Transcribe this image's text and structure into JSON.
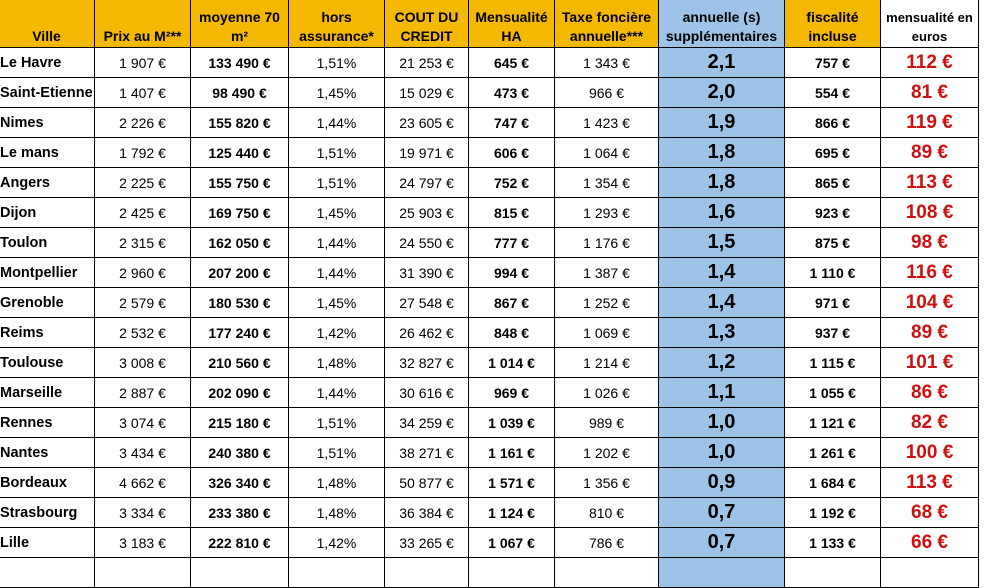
{
  "headers": {
    "ville": "Ville",
    "prix": "Prix au M²**",
    "moyenne_l1": "moyenne 70",
    "moyenne_l2": "m²",
    "hors_l1": "hors",
    "hors_l2": "assurance*",
    "cout_l1": "COUT DU",
    "cout_l2": "CREDIT",
    "mens_ha_l1": "Mensualité",
    "mens_ha_l2": "HA",
    "taxe_l1": "Taxe foncière",
    "taxe_l2": "annuelle***",
    "annuelle_l1": "annuelle (s)",
    "annuelle_l2": "supplémentaires",
    "fisc_l1": "fiscalité",
    "fisc_l2": "incluse",
    "mens_eur_l1": "mensualité en",
    "mens_eur_l2": "euros"
  },
  "rows": [
    {
      "ville": "Le Havre",
      "prix": "1 907 €",
      "moyenne": "133 490 €",
      "taux": "1,51%",
      "cout": "21 253 €",
      "mens_ha": "645 €",
      "taxe": "1 343 €",
      "annuelle": "2,1",
      "fiscalite": "757 €",
      "mensualite": "112 €"
    },
    {
      "ville": "Saint-Etienne",
      "prix": "1 407 €",
      "moyenne": "98 490 €",
      "taux": "1,45%",
      "cout": "15 029 €",
      "mens_ha": "473 €",
      "taxe": "966 €",
      "annuelle": "2,0",
      "fiscalite": "554 €",
      "mensualite": "81 €"
    },
    {
      "ville": "Nimes",
      "prix": "2 226 €",
      "moyenne": "155 820 €",
      "taux": "1,44%",
      "cout": "23 605 €",
      "mens_ha": "747 €",
      "taxe": "1 423 €",
      "annuelle": "1,9",
      "fiscalite": "866 €",
      "mensualite": "119 €"
    },
    {
      "ville": "Le mans",
      "prix": "1 792 €",
      "moyenne": "125 440 €",
      "taux": "1,51%",
      "cout": "19 971 €",
      "mens_ha": "606 €",
      "taxe": "1 064 €",
      "annuelle": "1,8",
      "fiscalite": "695 €",
      "mensualite": "89 €"
    },
    {
      "ville": "Angers",
      "prix": "2 225 €",
      "moyenne": "155 750 €",
      "taux": "1,51%",
      "cout": "24 797 €",
      "mens_ha": "752 €",
      "taxe": "1 354 €",
      "annuelle": "1,8",
      "fiscalite": "865 €",
      "mensualite": "113 €"
    },
    {
      "ville": "Dijon",
      "prix": "2 425 €",
      "moyenne": "169 750 €",
      "taux": "1,45%",
      "cout": "25 903 €",
      "mens_ha": "815 €",
      "taxe": "1 293 €",
      "annuelle": "1,6",
      "fiscalite": "923 €",
      "mensualite": "108 €"
    },
    {
      "ville": "Toulon",
      "prix": "2 315 €",
      "moyenne": "162 050 €",
      "taux": "1,44%",
      "cout": "24 550 €",
      "mens_ha": "777 €",
      "taxe": "1 176 €",
      "annuelle": "1,5",
      "fiscalite": "875 €",
      "mensualite": "98 €"
    },
    {
      "ville": "Montpellier",
      "prix": "2 960 €",
      "moyenne": "207 200 €",
      "taux": "1,44%",
      "cout": "31 390 €",
      "mens_ha": "994 €",
      "taxe": "1 387 €",
      "annuelle": "1,4",
      "fiscalite": "1 110 €",
      "mensualite": "116 €"
    },
    {
      "ville": "Grenoble",
      "prix": "2 579 €",
      "moyenne": "180 530 €",
      "taux": "1,45%",
      "cout": "27 548 €",
      "mens_ha": "867 €",
      "taxe": "1 252 €",
      "annuelle": "1,4",
      "fiscalite": "971 €",
      "mensualite": "104 €"
    },
    {
      "ville": "Reims",
      "prix": "2 532 €",
      "moyenne": "177 240 €",
      "taux": "1,42%",
      "cout": "26 462 €",
      "mens_ha": "848 €",
      "taxe": "1 069 €",
      "annuelle": "1,3",
      "fiscalite": "937 €",
      "mensualite": "89 €"
    },
    {
      "ville": "Toulouse",
      "prix": "3 008 €",
      "moyenne": "210 560 €",
      "taux": "1,48%",
      "cout": "32 827 €",
      "mens_ha": "1 014 €",
      "taxe": "1 214 €",
      "annuelle": "1,2",
      "fiscalite": "1 115 €",
      "mensualite": "101 €"
    },
    {
      "ville": "Marseille",
      "prix": "2 887 €",
      "moyenne": "202 090 €",
      "taux": "1,44%",
      "cout": "30 616 €",
      "mens_ha": "969 €",
      "taxe": "1 026 €",
      "annuelle": "1,1",
      "fiscalite": "1 055 €",
      "mensualite": "86 €"
    },
    {
      "ville": "Rennes",
      "prix": "3 074 €",
      "moyenne": "215 180 €",
      "taux": "1,51%",
      "cout": "34 259 €",
      "mens_ha": "1 039 €",
      "taxe": "989 €",
      "annuelle": "1,0",
      "fiscalite": "1 121 €",
      "mensualite": "82 €"
    },
    {
      "ville": "Nantes",
      "prix": "3 434 €",
      "moyenne": "240 380 €",
      "taux": "1,51%",
      "cout": "38 271 €",
      "mens_ha": "1 161 €",
      "taxe": "1 202 €",
      "annuelle": "1,0",
      "fiscalite": "1 261 €",
      "mensualite": "100 €"
    },
    {
      "ville": "Bordeaux",
      "prix": "4 662 €",
      "moyenne": "326 340 €",
      "taux": "1,48%",
      "cout": "50 877 €",
      "mens_ha": "1 571 €",
      "taxe": "1 356 €",
      "annuelle": "0,9",
      "fiscalite": "1 684 €",
      "mensualite": "113 €"
    },
    {
      "ville": "Strasbourg",
      "prix": "3 334 €",
      "moyenne": "233 380 €",
      "taux": "1,48%",
      "cout": "36 384 €",
      "mens_ha": "1 124 €",
      "taxe": "810 €",
      "annuelle": "0,7",
      "fiscalite": "1 192 €",
      "mensualite": "68 €"
    },
    {
      "ville": "Lille",
      "prix": "3 183 €",
      "moyenne": "222 810 €",
      "taux": "1,42%",
      "cout": "33 265 €",
      "mens_ha": "1 067 €",
      "taxe": "786 €",
      "annuelle": "0,7",
      "fiscalite": "1 133 €",
      "mensualite": "66 €"
    },
    {
      "ville": "",
      "prix": "",
      "moyenne": "",
      "taux": "",
      "cout": "",
      "mens_ha": "",
      "taxe": "",
      "annuelle": "",
      "fiscalite": "",
      "mensualite": ""
    }
  ],
  "colors": {
    "header_orange": "#f5b800",
    "score_blue": "#9dc3e6",
    "mensualite_red": "#d01010"
  }
}
